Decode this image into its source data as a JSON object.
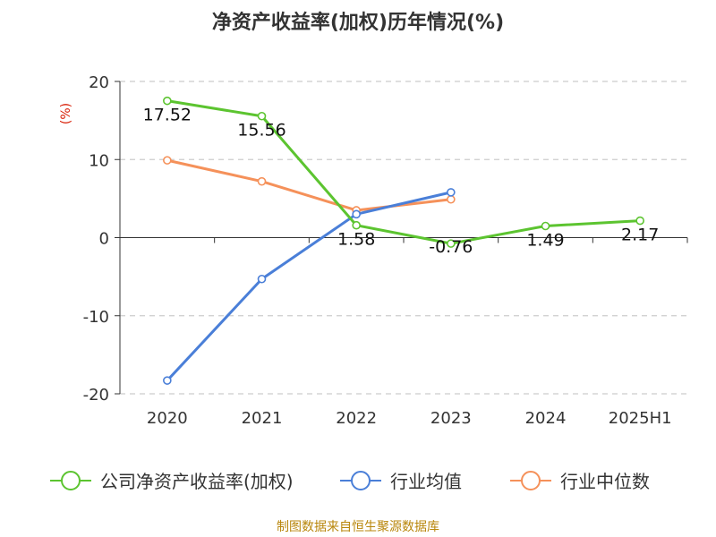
{
  "chart_data": {
    "type": "line",
    "title": "净资产收益率(加权)历年情况(%)",
    "ylabel": "(%)",
    "categories": [
      "2020",
      "2021",
      "2022",
      "2023",
      "2024",
      "2025H1"
    ],
    "ylim": [
      -20,
      20
    ],
    "yticks": [
      20,
      10,
      0,
      -10,
      -20
    ],
    "ytick_labels": [
      "20",
      "10",
      "0",
      "-10",
      "-20"
    ],
    "grid": true,
    "legend_position": "bottom",
    "series": [
      {
        "name": "公司净资产收益率(加权)",
        "color": "#5cc430",
        "values": [
          17.52,
          15.56,
          1.58,
          -0.76,
          1.49,
          2.17
        ],
        "labels": [
          "17.52",
          "15.56",
          "1.58",
          "-0.76",
          "1.49",
          "2.17"
        ]
      },
      {
        "name": "行业均值",
        "color": "#4a7fd8",
        "values": [
          -18.3,
          -5.3,
          3.0,
          5.8,
          null,
          null
        ]
      },
      {
        "name": "行业中位数",
        "color": "#f5915a",
        "values": [
          9.9,
          7.2,
          3.5,
          4.9,
          null,
          null
        ]
      }
    ]
  },
  "source": "制图数据来自恒生聚源数据库"
}
